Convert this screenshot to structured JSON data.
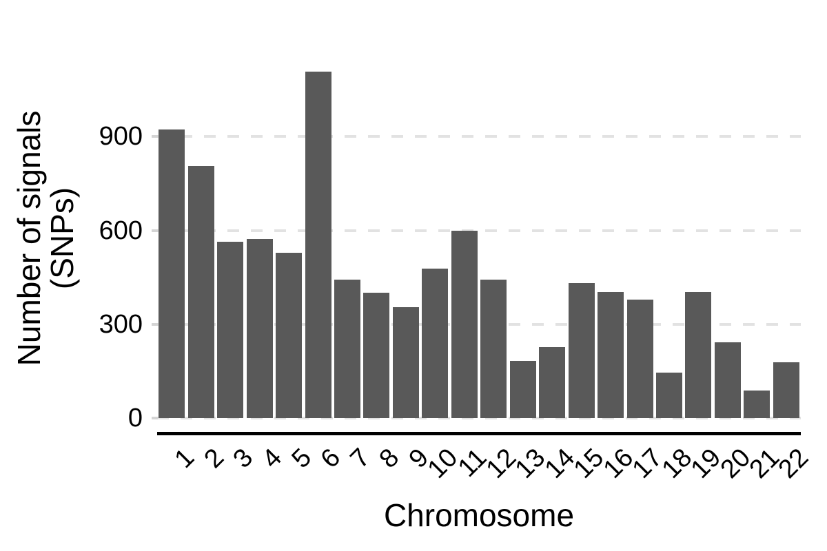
{
  "chart_data": {
    "type": "bar",
    "title": "",
    "xlabel": "Chromosome",
    "ylabel_line1": "Number of signals",
    "ylabel_line2": "(SNPs)",
    "categories": [
      "1",
      "2",
      "3",
      "4",
      "5",
      "6",
      "7",
      "8",
      "9",
      "10",
      "11",
      "12",
      "13",
      "14",
      "15",
      "16",
      "17",
      "18",
      "19",
      "20",
      "21",
      "22"
    ],
    "values": [
      922,
      806,
      564,
      573,
      528,
      1108,
      443,
      402,
      355,
      477,
      600,
      443,
      182,
      226,
      432,
      404,
      378,
      146,
      403,
      242,
      89,
      178
    ],
    "yticks": [
      0,
      300,
      600,
      900
    ],
    "ylim": [
      0,
      1150
    ],
    "grid": "horizontal-dashed",
    "legend_position": "none",
    "bar_color": "#595959",
    "gridline_color": "#e2e2e2",
    "tick_mark_color": "#d4d4d4",
    "axis_line_color": "#000000",
    "text_color": "#000000",
    "background_color": "#ffffff"
  }
}
